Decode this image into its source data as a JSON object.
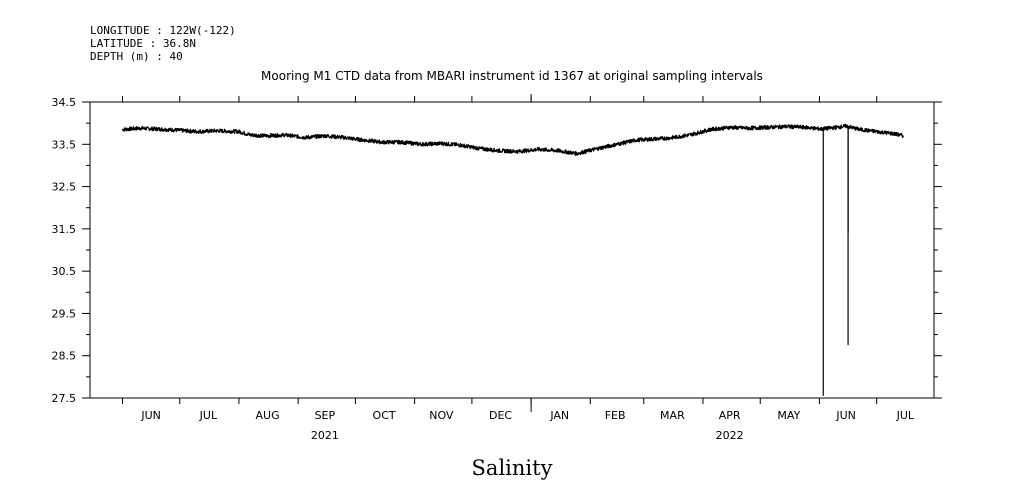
{
  "header": {
    "longitude": "LONGITUDE : 122W(-122)",
    "latitude": "LATITUDE : 36.8N",
    "depth": "DEPTH (m) : 40"
  },
  "chart_data": {
    "type": "line",
    "title": "Mooring M1 CTD data from MBARI instrument id 1367 at original sampling intervals",
    "ylabel": "Salinity",
    "xlabel": "",
    "ylim": [
      27.5,
      34.5
    ],
    "yticks": [
      "34.5",
      "33.5",
      "32.5",
      "31.5",
      "30.5",
      "29.5",
      "28.5",
      "27.5"
    ],
    "yticks_values": [
      34.5,
      33.5,
      32.5,
      31.5,
      30.5,
      29.5,
      28.5,
      27.5
    ],
    "xlim": [
      "2021-05-15",
      "2022-07-31"
    ],
    "month_labels": [
      {
        "label": "JUN",
        "date": "2021-06-16"
      },
      {
        "label": "JUL",
        "date": "2021-07-16"
      },
      {
        "label": "AUG",
        "date": "2021-08-16"
      },
      {
        "label": "SEP",
        "date": "2021-09-15"
      },
      {
        "label": "OCT",
        "date": "2021-10-16"
      },
      {
        "label": "NOV",
        "date": "2021-11-15"
      },
      {
        "label": "DEC",
        "date": "2021-12-16"
      },
      {
        "label": "JAN",
        "date": "2022-01-16"
      },
      {
        "label": "FEB",
        "date": "2022-02-14"
      },
      {
        "label": "MAR",
        "date": "2022-03-16"
      },
      {
        "label": "APR",
        "date": "2022-04-15"
      },
      {
        "label": "MAY",
        "date": "2022-05-16"
      },
      {
        "label": "JUN",
        "date": "2022-06-15"
      },
      {
        "label": "JUL",
        "date": "2022-07-16"
      }
    ],
    "year_labels": [
      {
        "label": "2021",
        "date": "2021-09-15"
      },
      {
        "label": "2022",
        "date": "2022-04-15"
      }
    ],
    "year_divider": "2022-01-01",
    "grid": false,
    "series": [
      {
        "color": "#000000",
        "points": [
          [
            "2021-06-01",
            33.85
          ],
          [
            "2021-06-10",
            33.88
          ],
          [
            "2021-06-20",
            33.86
          ],
          [
            "2021-07-01",
            33.83
          ],
          [
            "2021-07-10",
            33.8
          ],
          [
            "2021-07-20",
            33.82
          ],
          [
            "2021-08-01",
            33.8
          ],
          [
            "2021-08-07",
            33.72
          ],
          [
            "2021-08-15",
            33.7
          ],
          [
            "2021-08-25",
            33.72
          ],
          [
            "2021-09-05",
            33.66
          ],
          [
            "2021-09-15",
            33.7
          ],
          [
            "2021-09-25",
            33.66
          ],
          [
            "2021-10-05",
            33.6
          ],
          [
            "2021-10-15",
            33.55
          ],
          [
            "2021-10-25",
            33.55
          ],
          [
            "2021-11-05",
            33.5
          ],
          [
            "2021-11-15",
            33.52
          ],
          [
            "2021-11-25",
            33.48
          ],
          [
            "2021-12-05",
            33.4
          ],
          [
            "2021-12-15",
            33.35
          ],
          [
            "2021-12-25",
            33.33
          ],
          [
            "2022-01-05",
            33.38
          ],
          [
            "2022-01-15",
            33.35
          ],
          [
            "2022-01-25",
            33.28
          ],
          [
            "2022-02-05",
            33.4
          ],
          [
            "2022-02-15",
            33.5
          ],
          [
            "2022-02-25",
            33.6
          ],
          [
            "2022-03-05",
            33.62
          ],
          [
            "2022-03-15",
            33.65
          ],
          [
            "2022-03-25",
            33.72
          ],
          [
            "2022-04-05",
            33.85
          ],
          [
            "2022-04-15",
            33.9
          ],
          [
            "2022-04-25",
            33.88
          ],
          [
            "2022-05-05",
            33.9
          ],
          [
            "2022-05-15",
            33.92
          ],
          [
            "2022-05-25",
            33.9
          ],
          [
            "2022-06-02",
            33.86
          ],
          [
            "2022-06-10",
            33.9
          ],
          [
            "2022-06-15",
            33.93
          ],
          [
            "2022-06-22",
            33.85
          ],
          [
            "2022-07-01",
            33.8
          ],
          [
            "2022-07-10",
            33.75
          ],
          [
            "2022-07-15",
            33.7
          ]
        ],
        "spikes": [
          {
            "date": "2022-06-03",
            "from": 33.85,
            "to": 27.55
          },
          {
            "date": "2022-06-16",
            "from": 33.92,
            "to": 28.75
          },
          {
            "date": "2022-06-16",
            "from": 33.92,
            "to": 31.4
          }
        ]
      }
    ]
  }
}
